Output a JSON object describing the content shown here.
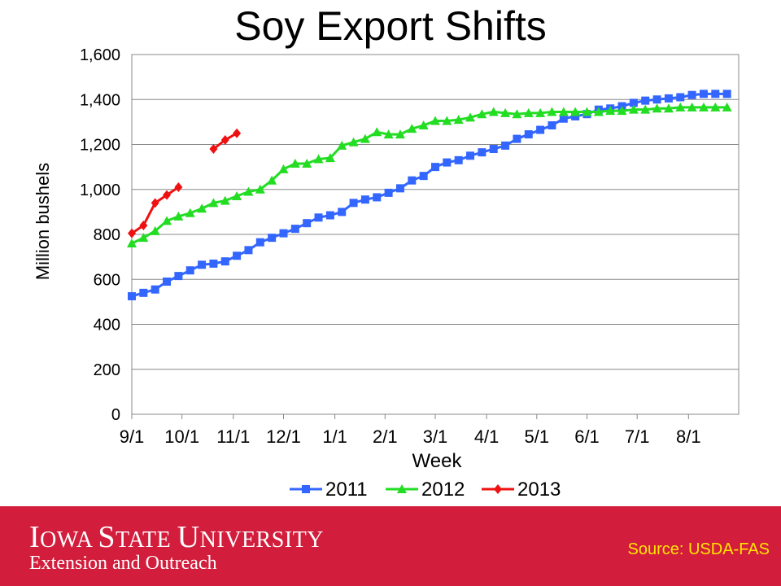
{
  "slide": {
    "title": "Soy Export Shifts",
    "source": "Source: USDA-FAS",
    "org_name_parts": [
      "I",
      "OWA ",
      "S",
      "TATE ",
      "U",
      "NIVERSITY"
    ],
    "org_sub": "Extension and Outreach",
    "footer_color": "#d31d3c",
    "source_color": "#ffe600"
  },
  "chart_data": {
    "type": "line",
    "xlabel": "Week",
    "ylabel": "Million bushels",
    "ylim": [
      0,
      1600
    ],
    "yticks": [
      0,
      200,
      400,
      600,
      800,
      1000,
      1200,
      1400,
      1600
    ],
    "ytick_labels": [
      "0",
      "200",
      "400",
      "600",
      "800",
      "1,000",
      "1,200",
      "1,400",
      "1,600"
    ],
    "xticks": [
      0,
      4.3,
      8.7,
      13,
      17.4,
      21.7,
      26,
      30.4,
      34.7,
      39,
      43.3,
      47.7
    ],
    "xtick_labels": [
      "9/1",
      "10/1",
      "11/1",
      "12/1",
      "1/1",
      "2/1",
      "3/1",
      "4/1",
      "5/1",
      "6/1",
      "7/1",
      "8/1"
    ],
    "xlim": [
      0,
      52
    ],
    "grid": "horizontal",
    "legend_position": "bottom",
    "series": [
      {
        "name": "2011",
        "color": "#3366ff",
        "marker": "square",
        "x": [
          0,
          1,
          2,
          3,
          4,
          5,
          6,
          7,
          8,
          9,
          10,
          11,
          12,
          13,
          14,
          15,
          16,
          17,
          18,
          19,
          20,
          21,
          22,
          23,
          24,
          25,
          26,
          27,
          28,
          29,
          30,
          31,
          32,
          33,
          34,
          35,
          36,
          37,
          38,
          39,
          40,
          41,
          42,
          43,
          44,
          45,
          46,
          47,
          48,
          49,
          50,
          51
        ],
        "values": [
          525,
          540,
          555,
          590,
          615,
          640,
          665,
          670,
          680,
          705,
          730,
          765,
          785,
          805,
          825,
          850,
          875,
          885,
          900,
          940,
          955,
          965,
          985,
          1005,
          1040,
          1060,
          1100,
          1120,
          1130,
          1150,
          1165,
          1180,
          1195,
          1225,
          1245,
          1265,
          1285,
          1315,
          1325,
          1335,
          1355,
          1360,
          1370,
          1385,
          1395,
          1400,
          1405,
          1410,
          1420,
          1425,
          1425,
          1425
        ]
      },
      {
        "name": "2012",
        "color": "#22dd22",
        "marker": "triangle",
        "x": [
          0,
          1,
          2,
          3,
          4,
          5,
          6,
          7,
          8,
          9,
          10,
          11,
          12,
          13,
          14,
          15,
          16,
          17,
          18,
          19,
          20,
          21,
          22,
          23,
          24,
          25,
          26,
          27,
          28,
          29,
          30,
          31,
          32,
          33,
          34,
          35,
          36,
          37,
          38,
          39,
          40,
          41,
          42,
          43,
          44,
          45,
          46,
          47,
          48,
          49,
          50,
          51
        ],
        "values": [
          760,
          785,
          815,
          860,
          880,
          895,
          915,
          940,
          950,
          970,
          990,
          1000,
          1040,
          1090,
          1115,
          1115,
          1135,
          1140,
          1195,
          1210,
          1225,
          1255,
          1245,
          1245,
          1270,
          1285,
          1305,
          1305,
          1310,
          1320,
          1335,
          1345,
          1340,
          1335,
          1340,
          1340,
          1345,
          1345,
          1345,
          1345,
          1345,
          1350,
          1350,
          1355,
          1355,
          1360,
          1360,
          1365,
          1365,
          1365,
          1365,
          1365
        ]
      },
      {
        "name": "2013",
        "color": "#ee1111",
        "marker": "diamond",
        "x": [
          0,
          1,
          2,
          3,
          4,
          7,
          8,
          9
        ],
        "values": [
          805,
          840,
          940,
          975,
          1010,
          1180,
          1220,
          1250
        ],
        "segments": [
          [
            0,
            5
          ],
          [
            5,
            8
          ]
        ]
      }
    ]
  }
}
